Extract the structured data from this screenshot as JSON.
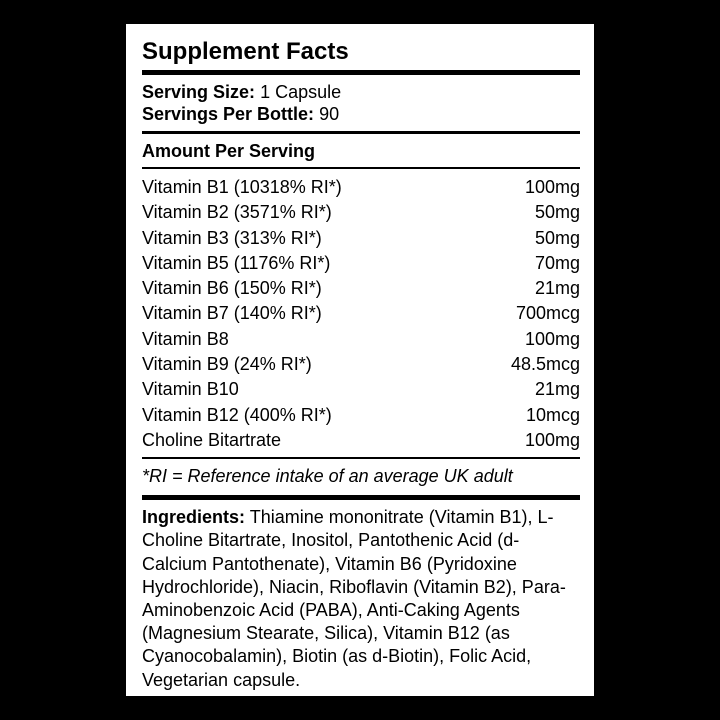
{
  "label": {
    "title": "Supplement Facts",
    "serving_size_label": "Serving Size:",
    "serving_size_value": "1 Capsule",
    "servings_per_label": "Servings Per Bottle:",
    "servings_per_value": "90",
    "amount_header": "Amount Per Serving",
    "nutrients": [
      {
        "name": "Vitamin B1 (10318% RI*)",
        "amount": "100mg"
      },
      {
        "name": "Vitamin B2 (3571% RI*)",
        "amount": "50mg"
      },
      {
        "name": "Vitamin B3 (313% RI*)",
        "amount": "50mg"
      },
      {
        "name": "Vitamin B5 (1176% RI*)",
        "amount": "70mg"
      },
      {
        "name": "Vitamin B6 (150% RI*)",
        "amount": "21mg"
      },
      {
        "name": "Vitamin B7 (140% RI*)",
        "amount": "700mcg"
      },
      {
        "name": "Vitamin B8",
        "amount": "100mg"
      },
      {
        "name": "Vitamin B9 (24% RI*)",
        "amount": "48.5mcg"
      },
      {
        "name": "Vitamin B10",
        "amount": "21mg"
      },
      {
        "name": "Vitamin B12 (400% RI*)",
        "amount": "10mcg"
      },
      {
        "name": "Choline Bitartrate",
        "amount": "100mg"
      }
    ],
    "footnote": "*RI = Reference intake of an average UK adult",
    "ingredients_label": "Ingredients:",
    "ingredients_text": "Thiamine mononitrate (Vitamin B1), L-Choline Bitartrate, Inositol, Pantothenic Acid (d-Calcium Pantothenate), Vitamin B6 (Pyridoxine Hydrochloride), Niacin, Riboflavin (Vitamin B2), Para-Aminobenzoic Acid (PABA), Anti-Caking Agents (Magnesium Stearate, Silica), Vitamin B12 (as Cyanocobalamin), Biotin (as d-Biotin), Folic Acid, Vegetarian capsule."
  }
}
